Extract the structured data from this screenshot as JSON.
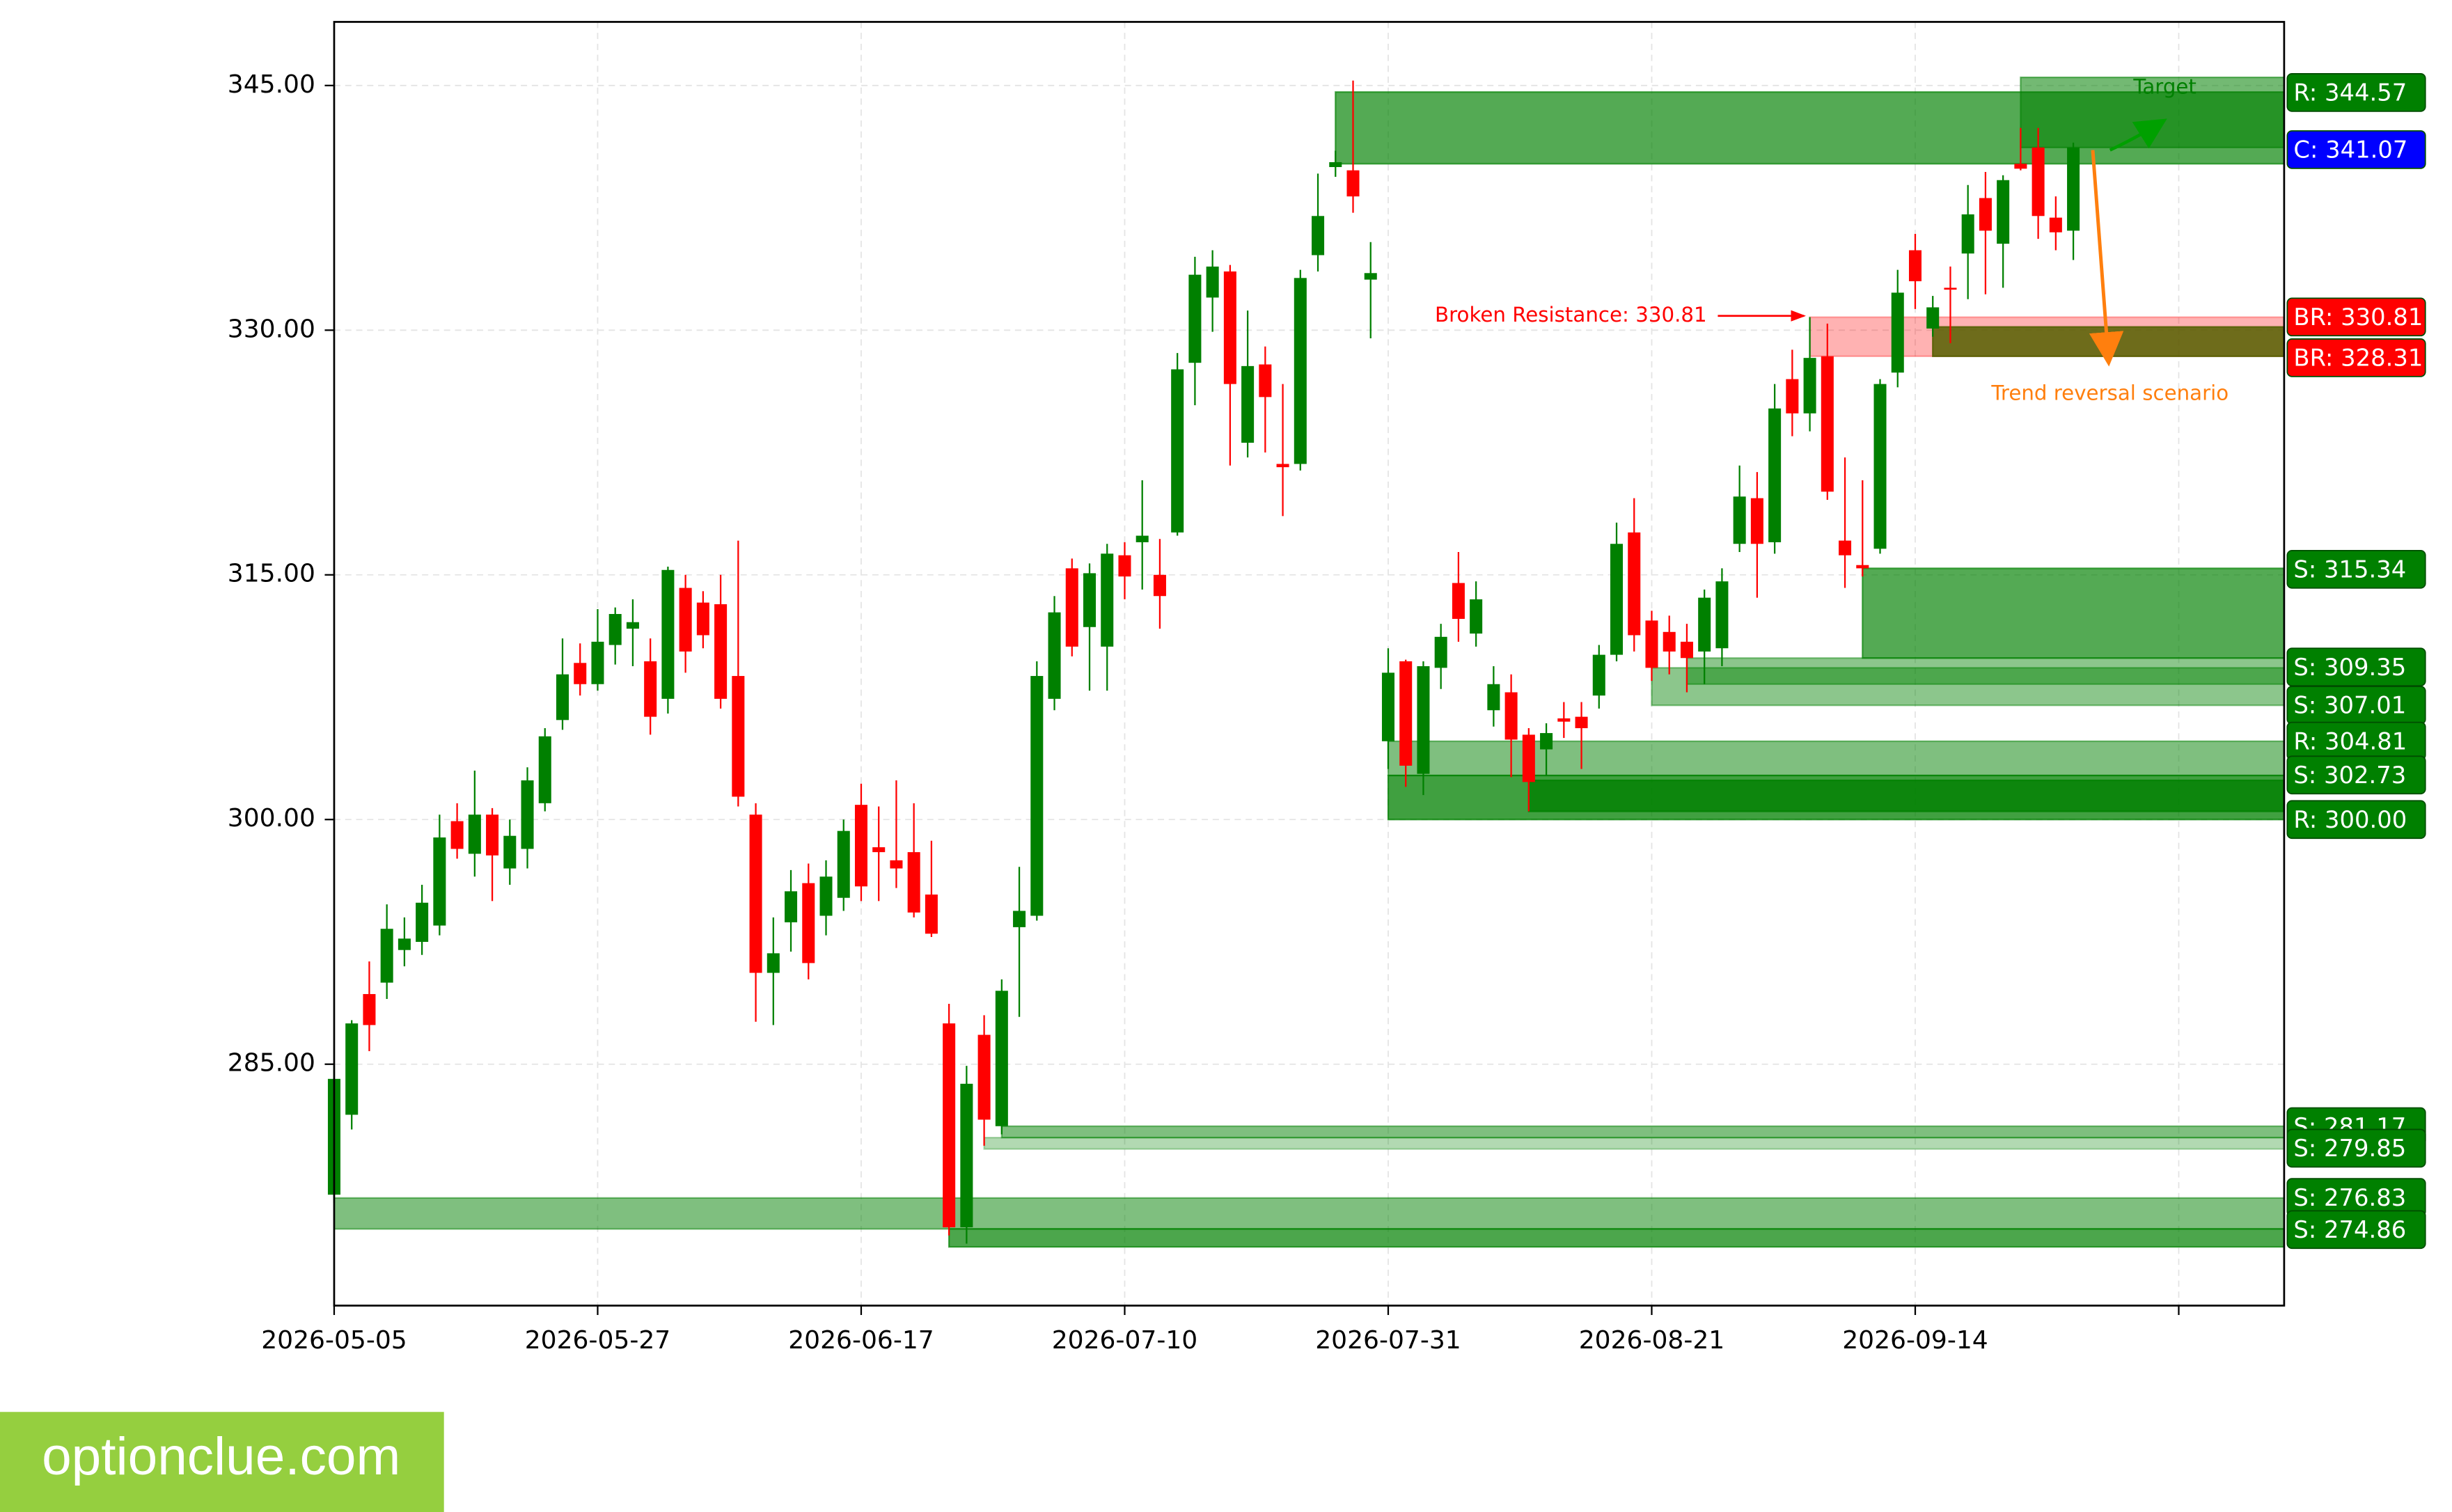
{
  "chart_data": {
    "type": "candlestick",
    "x": [
      0,
      1,
      2,
      3,
      4,
      5,
      6,
      7,
      8,
      9,
      10,
      11,
      12,
      13,
      14,
      15,
      16,
      17,
      18,
      19,
      20,
      21,
      22,
      23,
      24,
      25,
      26,
      27,
      28,
      29,
      30,
      31,
      32,
      33,
      34,
      35,
      36,
      37,
      38,
      39,
      40,
      41,
      42,
      43,
      44,
      45,
      46,
      47,
      48,
      49,
      50,
      51,
      52,
      53,
      54,
      55,
      56,
      57,
      58,
      59,
      60,
      61,
      62,
      63,
      64,
      65,
      66,
      67,
      68,
      69,
      70,
      71,
      72,
      73,
      74,
      75,
      76,
      77,
      78,
      79,
      80,
      81,
      82,
      83,
      84,
      85,
      86,
      87,
      88,
      89,
      90,
      91,
      92,
      93,
      94,
      95,
      96,
      97,
      98,
      99
    ],
    "open": [
      277.0,
      281.9,
      289.3,
      290.0,
      292.0,
      292.5,
      293.5,
      299.9,
      297.9,
      300.3,
      297.0,
      298.2,
      301.0,
      306.1,
      309.6,
      308.3,
      310.7,
      311.7,
      309.7,
      307.4,
      314.2,
      313.3,
      313.2,
      308.8,
      300.3,
      290.6,
      293.7,
      296.1,
      294.1,
      295.2,
      300.9,
      298.3,
      297.5,
      298.0,
      295.4,
      287.5,
      275.0,
      286.8,
      281.2,
      293.4,
      294.1,
      307.4,
      315.4,
      311.8,
      310.6,
      316.2,
      317.0,
      315.0,
      317.6,
      328.0,
      332.0,
      333.6,
      323.1,
      327.9,
      321.8,
      321.8,
      334.6,
      340.0,
      339.8,
      333.1,
      304.8,
      309.7,
      302.8,
      309.3,
      314.5,
      311.4,
      306.7,
      307.8,
      305.2,
      304.3,
      306.2,
      306.3,
      307.6,
      310.1,
      317.6,
      312.2,
      311.5,
      310.9,
      310.3,
      310.5,
      316.9,
      319.7,
      317.0,
      327.0,
      324.9,
      328.4,
      317.1,
      315.6,
      316.6,
      327.4,
      334.9,
      330.1,
      332.6,
      334.7,
      338.1,
      335.3,
      340.2,
      341.2,
      336.9,
      336.1
    ],
    "high": [
      284.9,
      287.7,
      291.3,
      294.8,
      294.0,
      296.0,
      300.3,
      301.0,
      303.0,
      300.7,
      300.0,
      303.2,
      305.6,
      311.1,
      310.8,
      312.9,
      313.0,
      313.5,
      311.1,
      315.5,
      315.0,
      314.0,
      315.0,
      317.1,
      301.0,
      294.0,
      296.9,
      297.3,
      297.5,
      300.0,
      302.2,
      300.8,
      302.4,
      301.0,
      298.7,
      288.7,
      284.9,
      288.0,
      290.2,
      297.1,
      309.7,
      313.7,
      316.0,
      315.7,
      316.9,
      317.0,
      320.8,
      317.2,
      328.6,
      334.5,
      334.9,
      334.0,
      331.2,
      329.0,
      326.7,
      333.7,
      339.6,
      341.0,
      345.3,
      335.4,
      310.5,
      309.8,
      309.7,
      312.0,
      316.4,
      314.6,
      309.4,
      308.9,
      305.6,
      305.9,
      307.2,
      307.2,
      310.7,
      318.2,
      319.7,
      312.8,
      312.5,
      312.0,
      314.1,
      315.4,
      321.7,
      321.3,
      326.7,
      328.8,
      330.8,
      330.4,
      322.2,
      320.8,
      327.0,
      333.7,
      335.9,
      332.1,
      333.9,
      338.9,
      339.7,
      339.5,
      342.4,
      342.4,
      338.2,
      341.5
    ],
    "low": [
      276.5,
      281.0,
      285.8,
      289.0,
      291.0,
      291.7,
      292.9,
      297.6,
      296.5,
      295.0,
      296.0,
      297.0,
      300.5,
      305.5,
      307.6,
      307.9,
      309.5,
      309.4,
      305.2,
      306.5,
      309.0,
      310.5,
      306.8,
      300.8,
      287.6,
      287.4,
      291.9,
      290.2,
      292.9,
      294.4,
      295.0,
      295.0,
      295.8,
      294.0,
      292.8,
      274.5,
      274.0,
      280.0,
      280.7,
      287.9,
      293.8,
      306.7,
      310.0,
      307.9,
      307.9,
      313.5,
      314.1,
      311.7,
      317.4,
      325.4,
      329.9,
      321.7,
      322.2,
      322.5,
      318.6,
      321.4,
      333.6,
      339.4,
      337.2,
      329.5,
      303.1,
      302.0,
      301.5,
      308.0,
      310.9,
      310.6,
      305.7,
      302.6,
      300.5,
      302.7,
      305.0,
      303.1,
      306.8,
      309.7,
      310.3,
      308.5,
      308.9,
      307.8,
      308.3,
      309.4,
      316.4,
      313.6,
      316.3,
      323.5,
      323.8,
      319.6,
      314.2,
      314.9,
      316.3,
      326.5,
      331.3,
      329.6,
      329.2,
      331.9,
      332.2,
      332.6,
      339.8,
      335.6,
      334.9,
      334.3
    ],
    "close": [
      284.1,
      287.5,
      287.4,
      293.3,
      292.7,
      294.9,
      298.9,
      298.2,
      300.3,
      297.8,
      299.0,
      302.4,
      305.1,
      308.9,
      308.3,
      310.9,
      312.6,
      312.1,
      306.3,
      315.3,
      310.3,
      311.3,
      307.4,
      301.4,
      290.6,
      291.8,
      295.6,
      291.2,
      296.5,
      299.3,
      295.9,
      298.0,
      297.0,
      294.3,
      293.0,
      275.0,
      283.8,
      281.6,
      289.5,
      294.4,
      308.8,
      312.7,
      310.6,
      315.1,
      316.3,
      314.9,
      317.4,
      313.7,
      327.6,
      333.4,
      333.9,
      326.7,
      327.8,
      325.9,
      321.6,
      333.2,
      337.0,
      340.3,
      338.2,
      333.5,
      309.0,
      303.3,
      309.4,
      311.2,
      312.3,
      313.5,
      308.3,
      304.9,
      302.3,
      305.3,
      306.0,
      305.6,
      310.1,
      316.9,
      311.3,
      309.3,
      310.3,
      309.9,
      313.6,
      314.6,
      319.8,
      316.9,
      325.2,
      324.9,
      328.3,
      320.1,
      316.2,
      315.4,
      326.7,
      332.3,
      333.0,
      331.4,
      332.5,
      337.1,
      336.1,
      339.2,
      339.9,
      337.0,
      336.0,
      341.2
    ],
    "up_color": "#008000",
    "down_color": "#ff0000",
    "xlim": [
      0,
      111
    ],
    "xticks": [
      {
        "value": 0,
        "label": "2026-05-05"
      },
      {
        "value": 15,
        "label": "2026-05-27"
      },
      {
        "value": 30,
        "label": "2026-06-17"
      },
      {
        "value": 45,
        "label": "2026-07-10"
      },
      {
        "value": 60,
        "label": "2026-07-31"
      },
      {
        "value": 75,
        "label": "2026-08-21"
      },
      {
        "value": 90,
        "label": "2026-09-14"
      },
      {
        "value": 105,
        "label": null
      }
    ],
    "ylim": [
      270.2,
      348.9
    ],
    "yticks": [
      {
        "value": 285,
        "label": "285.00"
      },
      {
        "value": 300,
        "label": "300.00"
      },
      {
        "value": 315,
        "label": "315.00"
      },
      {
        "value": 330,
        "label": "330.00"
      },
      {
        "value": 345,
        "label": "345.00"
      }
    ],
    "grid": true,
    "zones": [
      {
        "start": 0,
        "low": 274.9,
        "high": 276.8,
        "color": "rgba(0,128,0,0.5)"
      },
      {
        "start": 35,
        "low": 273.8,
        "high": 274.9,
        "color": "rgba(0,128,0,0.7)"
      },
      {
        "start": 37,
        "low": 279.8,
        "high": 280.5,
        "color": "rgba(0,128,0,0.3)"
      },
      {
        "start": 38,
        "low": 280.5,
        "high": 281.2,
        "color": "rgba(0,128,0,0.5)"
      },
      {
        "start": 60,
        "low": 302.7,
        "high": 304.8,
        "color": "rgba(0,128,0,0.5)"
      },
      {
        "start": 60,
        "low": 300.0,
        "high": 302.7,
        "color": "rgba(0,128,0,0.75)"
      },
      {
        "start": 68,
        "low": 300.5,
        "high": 302.4,
        "color": "rgba(0,128,0,0.8)"
      },
      {
        "start": 75,
        "low": 307.0,
        "high": 309.3,
        "color": "rgba(0,128,0,0.45)"
      },
      {
        "start": 77,
        "low": 308.3,
        "high": 309.9,
        "color": "rgba(0,128,0,0.45)"
      },
      {
        "start": 87,
        "low": 309.9,
        "high": 315.4,
        "color": "rgba(0,128,0,0.67)"
      },
      {
        "start": 84,
        "low": 328.4,
        "high": 330.8,
        "color": "rgba(255,0,0,0.3)"
      },
      {
        "start": 91,
        "low": 328.4,
        "high": 330.2,
        "color": "rgba(85,95,0,0.85)"
      },
      {
        "start": 57,
        "low": 340.2,
        "high": 344.6,
        "color": "rgba(0,128,0,0.67)"
      },
      {
        "start": 96,
        "low": 341.2,
        "high": 345.5,
        "color": "rgba(0,128,0,0.55)"
      }
    ],
    "levels": [
      {
        "label": "R: 344.57",
        "value": 344.57,
        "color": "#008000"
      },
      {
        "label": "C: 341.07",
        "value": 341.07,
        "color": "#0000ff"
      },
      {
        "label": "BR: 330.81",
        "value": 330.81,
        "color": "#ff0000"
      },
      {
        "label": "BR: 328.31",
        "value": 328.31,
        "color": "#ff0000"
      },
      {
        "label": "S: 315.34",
        "value": 315.34,
        "color": "#008000"
      },
      {
        "label": "S: 309.35",
        "value": 309.35,
        "color": "#008000"
      },
      {
        "label": "S: 307.01",
        "value": 307.01,
        "color": "#008000"
      },
      {
        "label": "R: 304.81",
        "value": 304.81,
        "color": "#008000"
      },
      {
        "label": "S: 302.73",
        "value": 302.73,
        "color": "#008000"
      },
      {
        "label": "R: 300.00",
        "value": 300,
        "color": "#008000"
      },
      {
        "label": "S: 281.17",
        "value": 281.17,
        "color": "#008000"
      },
      {
        "label": "S: 279.85",
        "value": 279.85,
        "color": "#008000"
      },
      {
        "label": "S: 276.83",
        "value": 276.83,
        "color": "#008000"
      },
      {
        "label": "S: 274.86",
        "value": 274.86,
        "color": "#008000"
      }
    ],
    "annotations": [
      {
        "text": "Broken Resistance: 330.81",
        "color": "#ff0000"
      },
      {
        "text": "Target",
        "color": "#008000"
      },
      {
        "text": "Trend reversal scenario",
        "color": "#ff7f0e"
      }
    ]
  },
  "watermark": "optionclue.com"
}
